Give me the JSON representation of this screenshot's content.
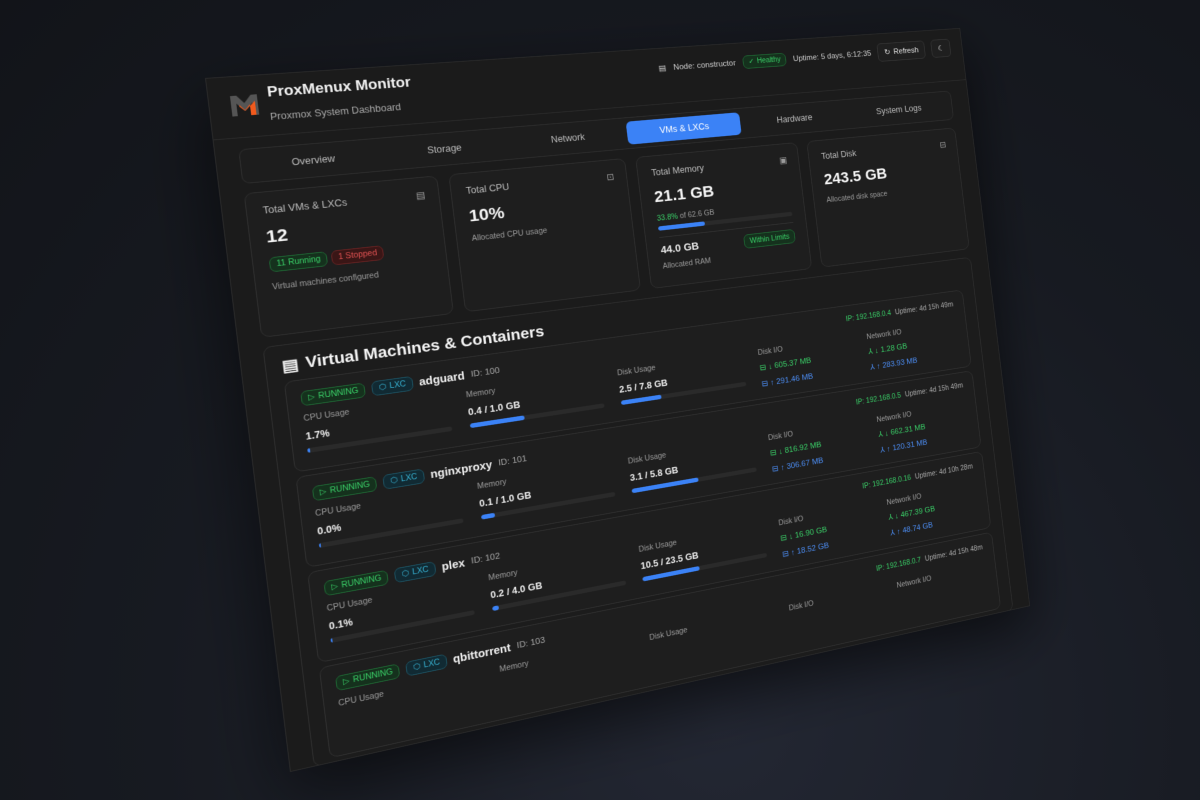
{
  "header": {
    "title": "ProxMenux Monitor",
    "subtitle": "Proxmox System Dashboard",
    "node": "Node: constructor",
    "health": "Healthy",
    "uptime": "Uptime: 5 days, 6:12:35",
    "refresh": "Refresh"
  },
  "tabs": [
    "Overview",
    "Storage",
    "Network",
    "VMs & LXCs",
    "Hardware",
    "System Logs"
  ],
  "active_tab": 3,
  "cards": {
    "vms": {
      "label": "Total VMs & LXCs",
      "value": "12",
      "running": "11 Running",
      "stopped": "1 Stopped",
      "sub": "Virtual machines configured"
    },
    "cpu": {
      "label": "Total CPU",
      "value": "10%",
      "sub": "Allocated CPU usage"
    },
    "memory": {
      "label": "Total Memory",
      "value": "21.1 GB",
      "pct": "33.8%",
      "of": "of 62.6 GB",
      "fill": 33.8,
      "allocated": "44.0 GB",
      "allocated_label": "Allocated RAM",
      "status": "Within Limits"
    },
    "disk": {
      "label": "Total Disk",
      "value": "243.5 GB",
      "sub": "Allocated disk space"
    }
  },
  "section": {
    "title": "Virtual Machines & Containers"
  },
  "labels": {
    "cpu": "CPU Usage",
    "memory": "Memory",
    "disk": "Disk Usage",
    "diskio": "Disk I/O",
    "netio": "Network I/O",
    "running": "RUNNING",
    "lxc": "LXC"
  },
  "vms": [
    {
      "name": "adguard",
      "id": "ID: 100",
      "ip": "IP: 192.168.0.4",
      "uptime": "Uptime: 4d 15h 49m",
      "cpu": "1.7%",
      "cpu_fill": 1.7,
      "mem": "0.4 / 1.0 GB",
      "mem_fill": 40,
      "disk": "2.5 / 7.8 GB",
      "disk_fill": 32,
      "disk_read": "↓ 605.37 MB",
      "disk_write": "↑ 291.46 MB",
      "net_in": "↓ 1.28 GB",
      "net_out": "↑ 283.93 MB"
    },
    {
      "name": "nginxproxy",
      "id": "ID: 101",
      "ip": "IP: 192.168.0.5",
      "uptime": "Uptime: 4d 15h 49m",
      "cpu": "0.0%",
      "cpu_fill": 0,
      "mem": "0.1 / 1.0 GB",
      "mem_fill": 10,
      "disk": "3.1 / 5.8 GB",
      "disk_fill": 53,
      "disk_read": "↓ 816.92 MB",
      "disk_write": "↑ 306.67 MB",
      "net_in": "↓ 662.31 MB",
      "net_out": "↑ 120.31 MB"
    },
    {
      "name": "plex",
      "id": "ID: 102",
      "ip": "IP: 192.168.0.16",
      "uptime": "Uptime: 4d 10h 28m",
      "cpu": "0.1%",
      "cpu_fill": 0.1,
      "mem": "0.2 / 4.0 GB",
      "mem_fill": 5,
      "disk": "10.5 / 23.5 GB",
      "disk_fill": 45,
      "disk_read": "↓ 16.90 GB",
      "disk_write": "↑ 18.52 GB",
      "net_in": "↓ 467.39 GB",
      "net_out": "↑ 48.74 GB"
    },
    {
      "name": "qbittorrent",
      "id": "ID: 103",
      "ip": "IP: 192.168.0.7",
      "uptime": "Uptime: 4d 15h 48m"
    }
  ],
  "colors": {
    "accent": "#3b82f6",
    "success": "#3ad068",
    "danger": "#e05252",
    "logo_orange": "#f25a1d"
  }
}
